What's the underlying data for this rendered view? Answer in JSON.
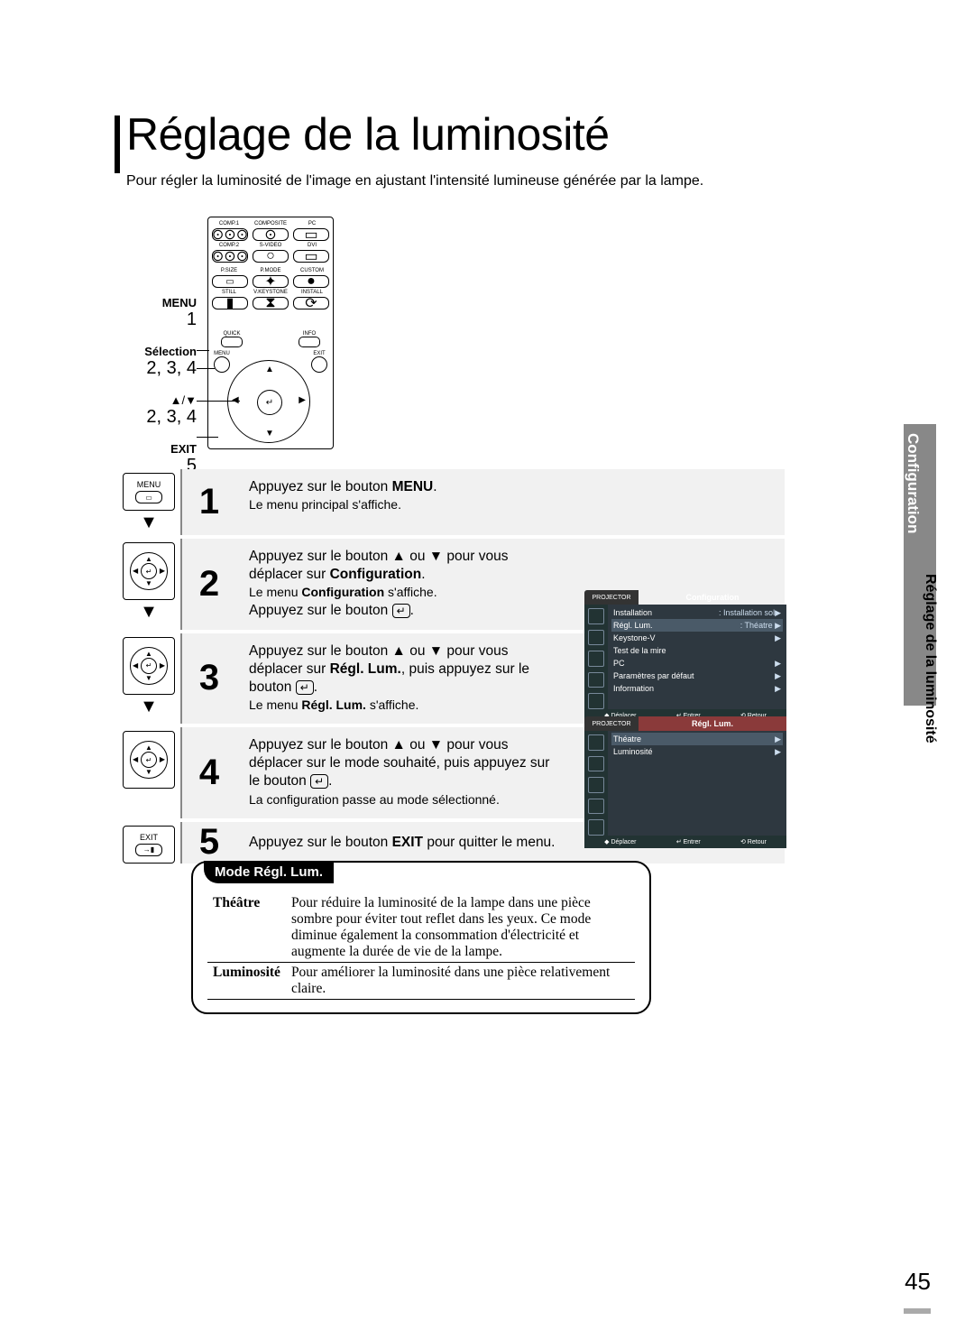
{
  "page": {
    "title": "Réglage de la luminosité",
    "subtitle": "Pour régler la luminosité de l'image en ajustant l'intensité lumineuse générée par la lampe.",
    "page_number": "45"
  },
  "side_tab": {
    "primary": "Configuration",
    "secondary": "Réglage de la luminosité"
  },
  "remote_labels": {
    "menu": "MENU",
    "menu_num": "1",
    "selection": "Sélection",
    "selection_num": "2, 3, 4",
    "arrows": "▲/▼",
    "arrows_num": "2, 3, 4",
    "exit": "EXIT",
    "exit_num": "5"
  },
  "remote_buttons": {
    "row1": [
      "COMP.1",
      "COMPOSITE",
      "PC"
    ],
    "row2": [
      "COMP.2",
      "S-VIDEO",
      "DVI"
    ],
    "row3": [
      "P.SIZE",
      "P.MODE",
      "CUSTOM"
    ],
    "row4": [
      "STILL",
      "V.KEYSTONE",
      "INSTALL"
    ],
    "quick": "QUICK",
    "info": "INFO",
    "menu": "MENU",
    "exit": "EXIT"
  },
  "steps": [
    {
      "num": "1",
      "icon_label": "MENU",
      "main_html": "Appuyez sur le bouton <b>MENU</b>.",
      "small": "Le menu principal s'affiche."
    },
    {
      "num": "2",
      "icon_label": "",
      "line1": "Appuyez sur le bouton ▲ ou ▼ pour vous",
      "line2_html": "déplacer sur <b>Configuration</b>.",
      "small_html": "Le menu <b>Configuration</b> s'affiche.",
      "line3_prefix": "Appuyez sur le bouton ",
      "line3_suffix": "."
    },
    {
      "num": "3",
      "line1": "Appuyez sur le bouton ▲ ou ▼ pour vous",
      "line2_html": "déplacer sur <b>Régl. Lum.</b>, puis appuyez sur le",
      "line3_prefix": "bouton ",
      "line3_suffix": ".",
      "small_html": "Le menu <b>Régl. Lum.</b> s'affiche."
    },
    {
      "num": "4",
      "line1": "Appuyez sur le bouton ▲ ou ▼ pour vous",
      "line2": "déplacer sur le mode souhaité, puis appuyez sur",
      "line3_prefix": "le bouton ",
      "line3_suffix": ".",
      "small": "La configuration passe au mode sélectionné."
    },
    {
      "num": "5",
      "icon_label": "EXIT",
      "main_html": "Appuyez sur le bouton <b>EXIT</b> pour quitter le menu."
    }
  ],
  "projector_menu1": {
    "tag": "PROJECTOR",
    "title": "Configuration",
    "title_bg": "#8a3a3a",
    "rows": [
      {
        "l": "Installation",
        "r": ": Installation sol▶"
      },
      {
        "l": "Régl. Lum.",
        "r": ": Théatre   ▶",
        "hl": true
      },
      {
        "l": "Keystone-V",
        "r": "▶"
      },
      {
        "l": "Test de la mire",
        "r": ""
      },
      {
        "l": "PC",
        "r": "▶"
      },
      {
        "l": "Paramètres par défaut",
        "r": "▶"
      },
      {
        "l": "Information",
        "r": "▶"
      }
    ],
    "footer": [
      "◆ Déplacer",
      "↵ Entrer",
      "⟲ Retour"
    ]
  },
  "projector_menu2": {
    "tag": "PROJECTOR",
    "title": "Régl. Lum.",
    "title_bg": "#8a3a3a",
    "rows": [
      {
        "l": "Théatre",
        "r": "▶",
        "hl": true
      },
      {
        "l": "Luminosité",
        "r": "▶"
      }
    ],
    "footer": [
      "◆ Déplacer",
      "↵ Entrer",
      "⟲ Retour"
    ]
  },
  "mode_box": {
    "tab": "Mode Régl. Lum.",
    "rows": [
      {
        "k": "Théâtre",
        "v": "Pour réduire la luminosité de la lampe dans une pièce sombre pour éviter tout reflet dans les yeux. Ce mode diminue également la consommation d'électricité et augmente la durée de vie de la lampe."
      },
      {
        "k": "Luminosité",
        "v": "Pour améliorer la luminosité dans une pièce relativement claire."
      }
    ]
  },
  "colors": {
    "step_bg": "#f1f1f1",
    "step_border": "#888888",
    "sidetab_bg": "#888888",
    "proj_body": "#2e3840",
    "proj_side": "#223333",
    "proj_hl": "#4a5a68"
  },
  "enter_glyph": "↵"
}
